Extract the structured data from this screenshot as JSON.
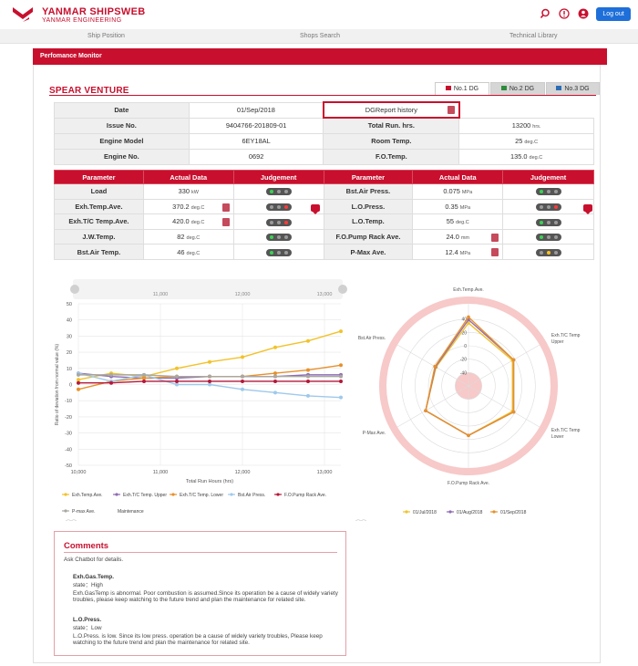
{
  "header": {
    "brand_title": "YANMAR SHIPSWEB",
    "brand_sub": "YANMAR ENGINEERING",
    "logout_label": "Log out",
    "icons": [
      "search-icon",
      "info-icon",
      "user-icon"
    ]
  },
  "nav": {
    "items": [
      "Ship Position",
      "Shops Search",
      "Technical Library"
    ]
  },
  "section_title": "Perfomance Monitor",
  "vessel_name": "SPEAR VENTURE",
  "dg_tabs": [
    {
      "label": "No.1 DG",
      "color": "#c8102e"
    },
    {
      "label": "No.2 DG",
      "color": "#2e8b3a"
    },
    {
      "label": "No.3 DG",
      "color": "#2a6db5"
    }
  ],
  "info": {
    "date_label": "Date",
    "date_value": "01/Sep/2018",
    "history_button": "DGReport history",
    "issue_label": "Issue No.",
    "issue_value": "9404766-201809-01",
    "runhrs_label": "Total Run. hrs.",
    "runhrs_value": "13200",
    "runhrs_unit": "hrs.",
    "model_label": "Engine Model",
    "model_value": "6EY18AL",
    "room_label": "Room Temp.",
    "room_value": "25",
    "room_unit": "deg.C",
    "engno_label": "Engine No.",
    "engno_value": "0692",
    "fotemp_label": "F.O.Temp.",
    "fotemp_value": "135.0",
    "fotemp_unit": "deg.C"
  },
  "params": {
    "headers": [
      "Parameter",
      "Actual Data",
      "Judgement"
    ],
    "left": [
      {
        "name": "Load",
        "value": "330",
        "unit": "kW",
        "lights": [
          "green",
          "off",
          "off"
        ]
      },
      {
        "name": "Exh.Temp.Ave.",
        "value": "370.2",
        "unit": "deg.C",
        "lights": [
          "off",
          "off",
          "red"
        ]
      },
      {
        "name": "Exh.T/C Temp.Ave.",
        "value": "420.0",
        "unit": "deg.C",
        "lights": [
          "off",
          "off",
          "red"
        ]
      },
      {
        "name": "J.W.Temp.",
        "value": "82",
        "unit": "deg.C",
        "lights": [
          "green",
          "off",
          "off"
        ]
      },
      {
        "name": "Bst.Air Temp.",
        "value": "46",
        "unit": "deg.C",
        "lights": [
          "green",
          "off",
          "off"
        ]
      }
    ],
    "right": [
      {
        "name": "Bst.Air Press.",
        "value": "0.075",
        "unit": "MPa",
        "lights": [
          "green",
          "off",
          "off"
        ]
      },
      {
        "name": "L.O.Press.",
        "value": "0.35",
        "unit": "MPa",
        "lights": [
          "off",
          "off",
          "red"
        ]
      },
      {
        "name": "L.O.Temp.",
        "value": "55",
        "unit": "deg.C",
        "lights": [
          "green",
          "off",
          "off"
        ]
      },
      {
        "name": "F.O.Pump Rack Ave.",
        "value": "24.0",
        "unit": "mm",
        "lights": [
          "green",
          "off",
          "off"
        ]
      },
      {
        "name": "P-Max Ave.",
        "value": "12.4",
        "unit": "MPa",
        "lights": [
          "off",
          "yellow",
          "off"
        ]
      }
    ]
  },
  "comments": {
    "title": "Comments",
    "intro": "Ask Chatbot for details.",
    "items": [
      {
        "head": "Exh.Gas.Temp.",
        "state": "state：High",
        "text": "Exh.GasTemp is abnormal. Poor combustion is assumed.Since its operation be a cause of  widely variety troubles, please keep watching to the future trend and plan the maintenance for related site."
      },
      {
        "head": "L.O.Press.",
        "state": "state：Low",
        "text": "L.O.Press. is low. Since its low press. operation be a cause of  widely variety troubles, Please keep watching to the future trend and plan the maintenance for related site."
      }
    ]
  },
  "chart_data": [
    {
      "type": "line",
      "title": "",
      "xlabel": "Total Run Hours (hrs)",
      "ylabel": "Ratio of deviation from normal value (%)",
      "x_ticks": [
        10000,
        11000,
        12000,
        13000
      ],
      "x_tick_labels": [
        "10,000",
        "11,000",
        "12,000",
        "13,000"
      ],
      "top_ticks": [
        "11,000",
        "12,000",
        "13,000"
      ],
      "xlim": [
        10000,
        13200
      ],
      "ylim": [
        -50,
        50
      ],
      "y_ticks": [
        50,
        40,
        30,
        20,
        10,
        0,
        -10,
        -20,
        -30,
        -40,
        -50
      ],
      "x": [
        10000,
        10400,
        10800,
        11200,
        11600,
        12000,
        12400,
        12800,
        13200
      ],
      "series": [
        {
          "name": "Exh.Temp.Ave.",
          "color": "#f2c22a",
          "values": [
            3,
            7,
            5,
            10,
            14,
            17,
            23,
            27,
            33
          ]
        },
        {
          "name": "Exh.T/C Temp. Upper",
          "color": "#8e6cb4",
          "values": [
            7,
            5,
            4,
            4,
            5,
            5,
            5,
            6,
            6
          ]
        },
        {
          "name": "Exh.T/C Temp. Lower",
          "color": "#e8902a",
          "values": [
            -3,
            2,
            4,
            5,
            5,
            5,
            7,
            9,
            12
          ]
        },
        {
          "name": "Bst.Air Press.",
          "color": "#9ec9ec",
          "values": [
            7,
            2,
            6,
            0,
            0,
            -3,
            -5,
            -7,
            -8
          ]
        },
        {
          "name": "F.O.Pump Rack Ave.",
          "color": "#b5183a",
          "values": [
            1,
            1,
            2,
            2,
            2,
            2,
            2,
            2,
            2
          ]
        },
        {
          "name": "P-max Ave.",
          "color": "#a8a8a0",
          "values": [
            6,
            6,
            6,
            5,
            5,
            5,
            5,
            5,
            5
          ]
        }
      ],
      "legend_extra": "Maintenance",
      "legend_placement": "bottom",
      "grid": true
    },
    {
      "type": "radar",
      "axes": [
        "Exh.Temp.Ave.",
        "Exh.T/C Temp Upper",
        "Exh.T/C Temp Lower",
        "F.O.Pump Rack Ave.",
        "P-Max Ave.",
        "Bst.Air Press."
      ],
      "r_ticks": [
        40,
        20,
        0,
        -20,
        -40
      ],
      "rlim": [
        -60,
        60
      ],
      "series": [
        {
          "name": "01/Jul/2018",
          "color": "#f2c22a",
          "values": [
            34,
            16,
            16,
            14,
            14,
            -4
          ]
        },
        {
          "name": "01/Aug/2018",
          "color": "#8e6cb4",
          "values": [
            39,
            18,
            18,
            14,
            14,
            -3
          ]
        },
        {
          "name": "01/Sep/2018",
          "color": "#e8902a",
          "values": [
            43,
            18,
            18,
            14,
            14,
            -2
          ]
        }
      ],
      "legend_placement": "bottom"
    }
  ]
}
